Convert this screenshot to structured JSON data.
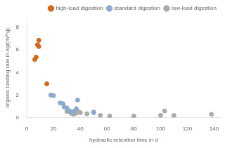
{
  "chart_data": {
    "type": "scatter",
    "xlabel": "hydraulic retention time in d",
    "ylabel": "organic loading rate in kg/(m³*g)",
    "series": [
      {
        "name": "high-load digestion",
        "color": "#D2691E",
        "x": [
          6,
          7,
          8,
          9,
          9,
          15
        ],
        "values": [
          5.15,
          5.35,
          6.45,
          6.85,
          6.3,
          3.0
        ]
      },
      {
        "name": "standard digestion",
        "color": "#8AABCF",
        "x": [
          18,
          20,
          25,
          27,
          28,
          30,
          32,
          33,
          35,
          37,
          38,
          50
        ],
        "values": [
          2.0,
          1.95,
          1.3,
          1.25,
          0.95,
          0.85,
          0.6,
          0.55,
          0.55,
          0.8,
          1.55,
          0.45
        ]
      },
      {
        "name": "low-load digestion",
        "color": "#AAAAAA",
        "x": [
          30,
          32,
          33,
          34,
          35,
          36,
          37,
          38,
          40,
          45,
          50,
          55,
          62,
          80,
          100,
          103,
          110,
          138
        ],
        "values": [
          0.55,
          0.5,
          0.45,
          0.35,
          0.3,
          0.4,
          0.4,
          0.6,
          0.45,
          0.35,
          0.5,
          0.2,
          0.15,
          0.15,
          0.2,
          0.6,
          0.2,
          0.3
        ]
      }
    ],
    "xlim": [
      0,
      145
    ],
    "ylim": [
      0,
      8.8
    ],
    "xticks": [
      0,
      20,
      40,
      60,
      80,
      100,
      120,
      140
    ],
    "yticks": [
      0,
      2,
      4,
      6,
      8
    ],
    "grid": false,
    "legend": "upper right"
  }
}
